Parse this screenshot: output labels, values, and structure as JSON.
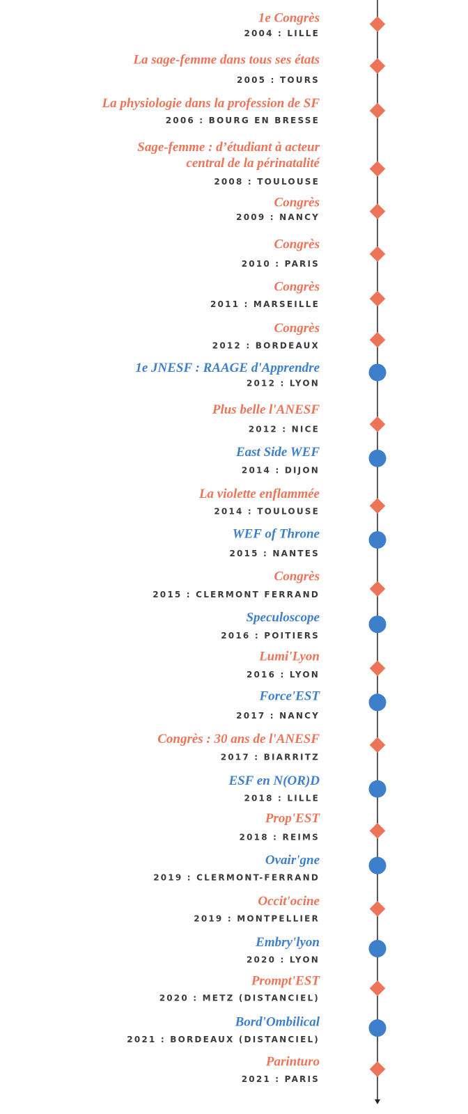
{
  "timeline": {
    "items": [
      {
        "title": [
          "1e Congrès"
        ],
        "subtitle": "2004 : LILLE",
        "marker": "diamond",
        "color": "#ec7458"
      },
      {
        "title": [
          "La sage-femme dans tous ses états"
        ],
        "subtitle": "2005 : TOURS",
        "marker": "diamond",
        "color": "#ec7458"
      },
      {
        "title": [
          "La physiologie dans la profession de SF"
        ],
        "subtitle": "2006 : BOURG EN BRESSE",
        "marker": "diamond",
        "color": "#ec7458"
      },
      {
        "title": [
          "Sage-femme : d’étudiant à acteur",
          "central de la périnatalité"
        ],
        "subtitle": "2008 : TOULOUSE",
        "marker": "diamond",
        "color": "#ec7458"
      },
      {
        "title": [
          "Congrès"
        ],
        "subtitle": "2009 : NANCY",
        "marker": "diamond",
        "color": "#ec7458"
      },
      {
        "title": [
          "Congrès"
        ],
        "subtitle": "2010 : PARIS",
        "marker": "diamond",
        "color": "#ec7458"
      },
      {
        "title": [
          "Congrès"
        ],
        "subtitle": "2011 : MARSEILLE",
        "marker": "diamond",
        "color": "#ec7458"
      },
      {
        "title": [
          "Congrès"
        ],
        "subtitle": "2012 : BORDEAUX",
        "marker": "diamond",
        "color": "#ec7458"
      },
      {
        "title": [
          "1e JNESF : RAAGE d'Apprendre"
        ],
        "subtitle": "2012 : LYON",
        "marker": "circle",
        "color": "#3d7fcb"
      },
      {
        "title": [
          "Plus belle l'ANESF"
        ],
        "subtitle": "2012 : NICE",
        "marker": "diamond",
        "color": "#ec7458"
      },
      {
        "title": [
          "East Side WEF"
        ],
        "subtitle": "2014 : DIJON",
        "marker": "circle",
        "color": "#3d7fcb"
      },
      {
        "title": [
          "La violette enflammée"
        ],
        "subtitle": "2014 : TOULOUSE",
        "marker": "diamond",
        "color": "#ec7458"
      },
      {
        "title": [
          "WEF of Throne"
        ],
        "subtitle": "2015 : NANTES",
        "marker": "circle",
        "color": "#3d7fcb"
      },
      {
        "title": [
          "Congrès"
        ],
        "subtitle": "2015 : CLERMONT FERRAND",
        "marker": "diamond",
        "color": "#ec7458"
      },
      {
        "title": [
          "Speculoscope"
        ],
        "subtitle": "2016 : POITIERS",
        "marker": "circle",
        "color": "#3d7fcb"
      },
      {
        "title": [
          "Lumi'Lyon"
        ],
        "subtitle": "2016 : LYON",
        "marker": "diamond",
        "color": "#ec7458"
      },
      {
        "title": [
          "Force'EST"
        ],
        "subtitle": "2017 : NANCY",
        "marker": "circle",
        "color": "#3d7fcb"
      },
      {
        "title": [
          "Congrès : 30 ans de l'ANESF"
        ],
        "subtitle": "2017 : BIARRITZ",
        "marker": "diamond",
        "color": "#ec7458"
      },
      {
        "title": [
          "ESF en N(OR)D"
        ],
        "subtitle": "2018 : LILLE",
        "marker": "circle",
        "color": "#3d7fcb"
      },
      {
        "title": [
          "Prop'EST"
        ],
        "subtitle": "2018 : REIMS",
        "marker": "diamond",
        "color": "#ec7458"
      },
      {
        "title": [
          "Ovair'gne"
        ],
        "subtitle": "2019 : CLERMONT-FERRAND",
        "marker": "circle",
        "color": "#3d7fcb"
      },
      {
        "title": [
          "Occit'ocine"
        ],
        "subtitle": "2019 : MONTPELLIER",
        "marker": "diamond",
        "color": "#ec7458"
      },
      {
        "title": [
          "Embry'lyon"
        ],
        "subtitle": "2020 : LYON",
        "marker": "circle",
        "color": "#3d7fcb"
      },
      {
        "title": [
          "Prompt'EST"
        ],
        "subtitle": "2020 : METZ (DISTANCIEL)",
        "marker": "diamond",
        "color": "#ec7458"
      },
      {
        "title": [
          "Bord'Ombilical"
        ],
        "subtitle": "2021 : BORDEAUX (DISTANCIEL)",
        "marker": "circle",
        "color": "#3d7fcb"
      },
      {
        "title": [
          "Parinturo"
        ],
        "subtitle": "2021 : PARIS",
        "marker": "diamond",
        "color": "#ec7458"
      }
    ]
  }
}
